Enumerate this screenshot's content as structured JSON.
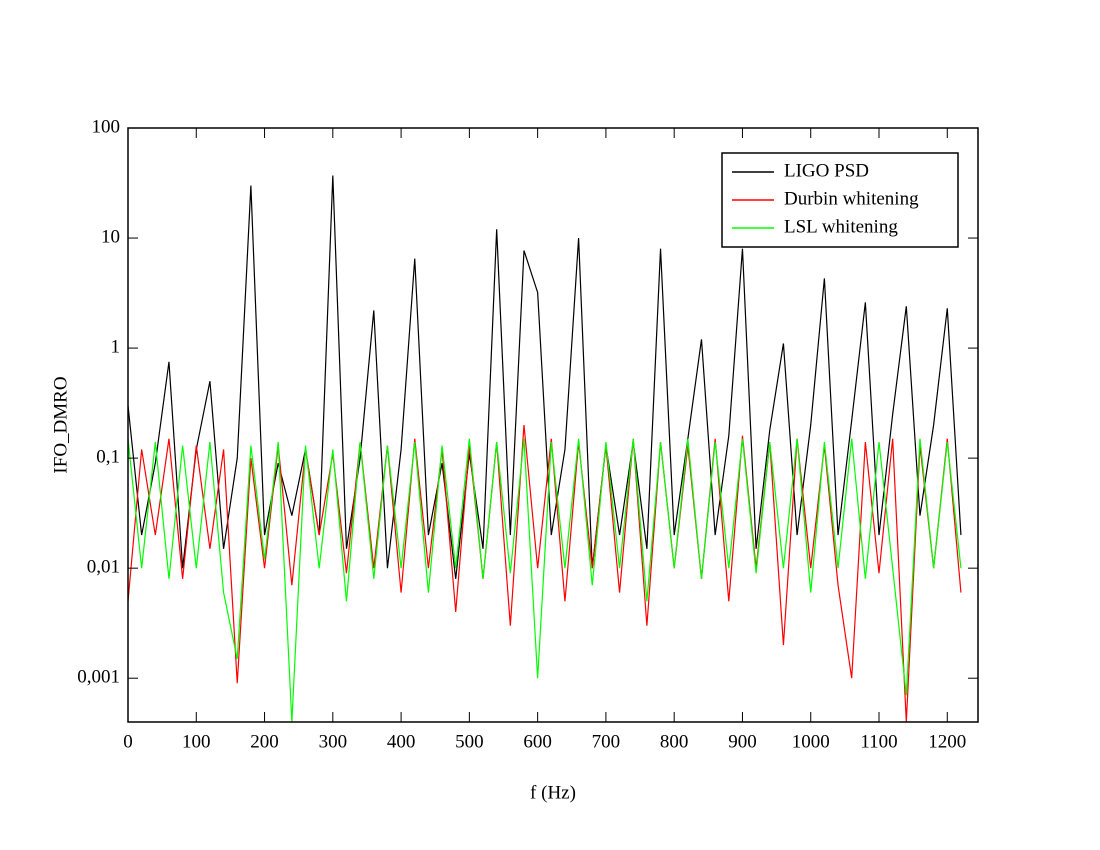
{
  "chart_data": {
    "type": "line",
    "x_label": "f (Hz)",
    "y_label": "IFO_DMRO",
    "x": [
      0,
      20,
      40,
      60,
      80,
      100,
      120,
      140,
      160,
      180,
      200,
      220,
      240,
      260,
      280,
      300,
      320,
      340,
      360,
      380,
      400,
      420,
      440,
      460,
      480,
      500,
      520,
      540,
      560,
      580,
      600,
      620,
      640,
      660,
      680,
      700,
      720,
      740,
      760,
      780,
      800,
      820,
      840,
      860,
      880,
      900,
      920,
      940,
      960,
      980,
      1000,
      1020,
      1040,
      1060,
      1080,
      1100,
      1120,
      1140,
      1160,
      1180,
      1200,
      1220
    ],
    "series": [
      {
        "name": "LIGO PSD",
        "color": "#000000",
        "values": [
          0.3,
          0.02,
          0.09,
          0.75,
          0.01,
          0.12,
          0.5,
          0.015,
          0.1,
          30,
          0.02,
          0.09,
          0.03,
          0.12,
          0.02,
          37,
          0.015,
          0.1,
          2.2,
          0.01,
          0.12,
          6.5,
          0.02,
          0.09,
          0.008,
          0.11,
          0.015,
          12,
          0.02,
          7.7,
          3.2,
          0.02,
          0.12,
          10,
          0.01,
          0.13,
          0.02,
          0.14,
          0.015,
          8,
          0.02,
          0.15,
          1.2,
          0.02,
          0.16,
          8,
          0.015,
          0.18,
          1.1,
          0.02,
          0.2,
          4.3,
          0.02,
          0.22,
          2.6,
          0.02,
          0.25,
          2.4,
          0.03,
          0.2,
          2.3,
          0.02
        ]
      },
      {
        "name": "Durbin whitening",
        "color": "#ff0000",
        "values": [
          0.005,
          0.12,
          0.02,
          0.15,
          0.008,
          0.13,
          0.015,
          0.12,
          0.0009,
          0.1,
          0.01,
          0.13,
          0.007,
          0.12,
          0.02,
          0.11,
          0.009,
          0.14,
          0.01,
          0.13,
          0.006,
          0.15,
          0.01,
          0.12,
          0.004,
          0.13,
          0.008,
          0.14,
          0.003,
          0.2,
          0.01,
          0.15,
          0.005,
          0.14,
          0.01,
          0.13,
          0.006,
          0.15,
          0.003,
          0.14,
          0.01,
          0.13,
          0.008,
          0.15,
          0.005,
          0.16,
          0.01,
          0.14,
          0.002,
          0.15,
          0.01,
          0.13,
          0.007,
          0.001,
          0.14,
          0.009,
          0.15,
          0.0004,
          0.13,
          0.01,
          0.15,
          0.006
        ]
      },
      {
        "name": "LSL whitening",
        "color": "#00ff00",
        "values": [
          0.15,
          0.01,
          0.14,
          0.008,
          0.13,
          0.01,
          0.14,
          0.006,
          0.0015,
          0.13,
          0.012,
          0.14,
          0.0004,
          0.13,
          0.01,
          0.12,
          0.005,
          0.14,
          0.008,
          0.13,
          0.01,
          0.14,
          0.006,
          0.13,
          0.01,
          0.15,
          0.008,
          0.14,
          0.009,
          0.15,
          0.001,
          0.14,
          0.01,
          0.15,
          0.007,
          0.14,
          0.01,
          0.15,
          0.005,
          0.14,
          0.01,
          0.15,
          0.008,
          0.14,
          0.01,
          0.15,
          0.009,
          0.14,
          0.01,
          0.15,
          0.006,
          0.14,
          0.01,
          0.15,
          0.008,
          0.14,
          0.01,
          0.0007,
          0.15,
          0.01,
          0.14,
          0.01
        ]
      }
    ],
    "xlim": [
      0,
      1245
    ],
    "xticks": [
      0,
      100,
      200,
      300,
      400,
      500,
      600,
      700,
      800,
      900,
      1000,
      1100,
      1200
    ],
    "ylim": [
      0.0004,
      100
    ],
    "log_y": true,
    "yticks": [
      {
        "value": 0.001,
        "label": "0,001"
      },
      {
        "value": 0.01,
        "label": "0,01"
      },
      {
        "value": 0.1,
        "label": "0,1"
      },
      1,
      10,
      100
    ],
    "grid": false,
    "legend": "upper right"
  }
}
